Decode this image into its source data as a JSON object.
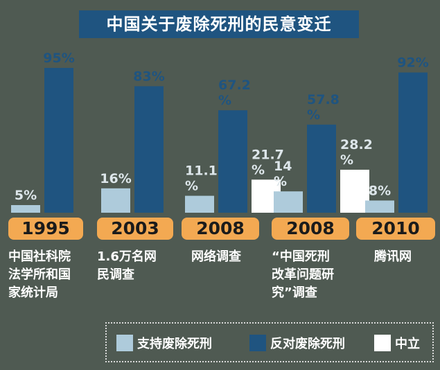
{
  "title": "中国关于废除死刑的民意变迁",
  "colors": {
    "support": "#aecbdb",
    "oppose": "#1f5480",
    "neutral": "#ffffff",
    "year_label": "#f3a952",
    "background": "#4f5a52"
  },
  "legend": [
    {
      "key": "support",
      "label": "支持废除死刑"
    },
    {
      "key": "oppose",
      "label": "反对废除死刑"
    },
    {
      "key": "neutral",
      "label": "中立"
    }
  ],
  "chart_data": {
    "type": "bar",
    "title": "中国关于废除死刑的民意变迁",
    "categories": [
      "1995",
      "2003",
      "2008",
      "2008",
      "2010"
    ],
    "category_sources": [
      "中国社科院\n法学所和国\n家统计局",
      "1.6万名网\n民调查",
      "网络调查",
      "“中国死刑\n改革问题研\n究”调查",
      "腾讯网"
    ],
    "series": [
      {
        "name": "支持废除死刑",
        "values": [
          5,
          16,
          11.1,
          14,
          8
        ],
        "labels": [
          "5%",
          "16%",
          "11.1\n%",
          "14\n%",
          "8%"
        ]
      },
      {
        "name": "反对废除死刑",
        "values": [
          95,
          83,
          67.2,
          57.8,
          92
        ],
        "labels": [
          "95%",
          "83%",
          "67.2\n%",
          "57.8\n%",
          "92%"
        ]
      },
      {
        "name": "中立",
        "values": [
          null,
          null,
          21.7,
          28.2,
          null
        ],
        "labels": [
          "",
          "",
          "21.7\n%",
          "28.2\n%",
          ""
        ]
      }
    ],
    "ylim": [
      0,
      100
    ],
    "grid": false,
    "legend_position": "bottom-right"
  }
}
